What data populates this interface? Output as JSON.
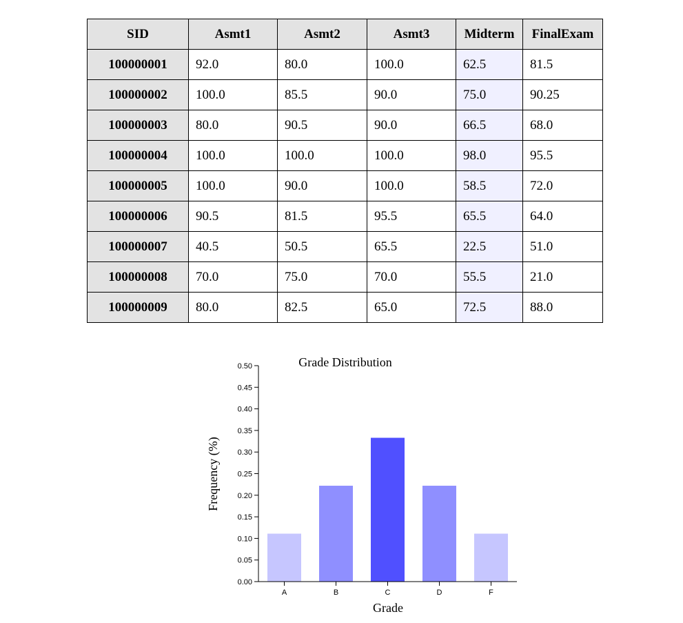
{
  "table": {
    "headers": [
      "SID",
      "Asmt1",
      "Asmt2",
      "Asmt3",
      "Midterm",
      "FinalExam"
    ],
    "rows": [
      [
        "100000001",
        "92.0",
        "80.0",
        "100.0",
        "62.5",
        "81.5"
      ],
      [
        "100000002",
        "100.0",
        "85.5",
        "90.0",
        "75.0",
        "90.25"
      ],
      [
        "100000003",
        "80.0",
        "90.5",
        "90.0",
        "66.5",
        "68.0"
      ],
      [
        "100000004",
        "100.0",
        "100.0",
        "100.0",
        "98.0",
        "95.5"
      ],
      [
        "100000005",
        "100.0",
        "90.0",
        "100.0",
        "58.5",
        "72.0"
      ],
      [
        "100000006",
        "90.5",
        "81.5",
        "95.5",
        "65.5",
        "64.0"
      ],
      [
        "100000007",
        "40.5",
        "50.5",
        "65.5",
        "22.5",
        "51.0"
      ],
      [
        "100000008",
        "70.0",
        "75.0",
        "70.0",
        "55.5",
        "21.0"
      ],
      [
        "100000009",
        "80.0",
        "82.5",
        "65.0",
        "72.5",
        "88.0"
      ]
    ],
    "highlight_color": "#f0f0ff",
    "header_color": "#e3e3e3"
  },
  "chart_data": {
    "type": "bar",
    "title": "Grade Distribution",
    "xlabel": "Grade",
    "ylabel": "Frequency (%)",
    "categories": [
      "A",
      "B",
      "C",
      "D",
      "F"
    ],
    "values": [
      0.111,
      0.222,
      0.333,
      0.222,
      0.111
    ],
    "colors": [
      "#c6c6ff",
      "#8f8fff",
      "#5050ff",
      "#8f8fff",
      "#c6c6ff"
    ],
    "ylim": [
      0,
      0.5
    ],
    "yticks": [
      "0.00",
      "0.05",
      "0.10",
      "0.15",
      "0.20",
      "0.25",
      "0.30",
      "0.35",
      "0.40",
      "0.45",
      "0.50"
    ],
    "grid": false
  }
}
